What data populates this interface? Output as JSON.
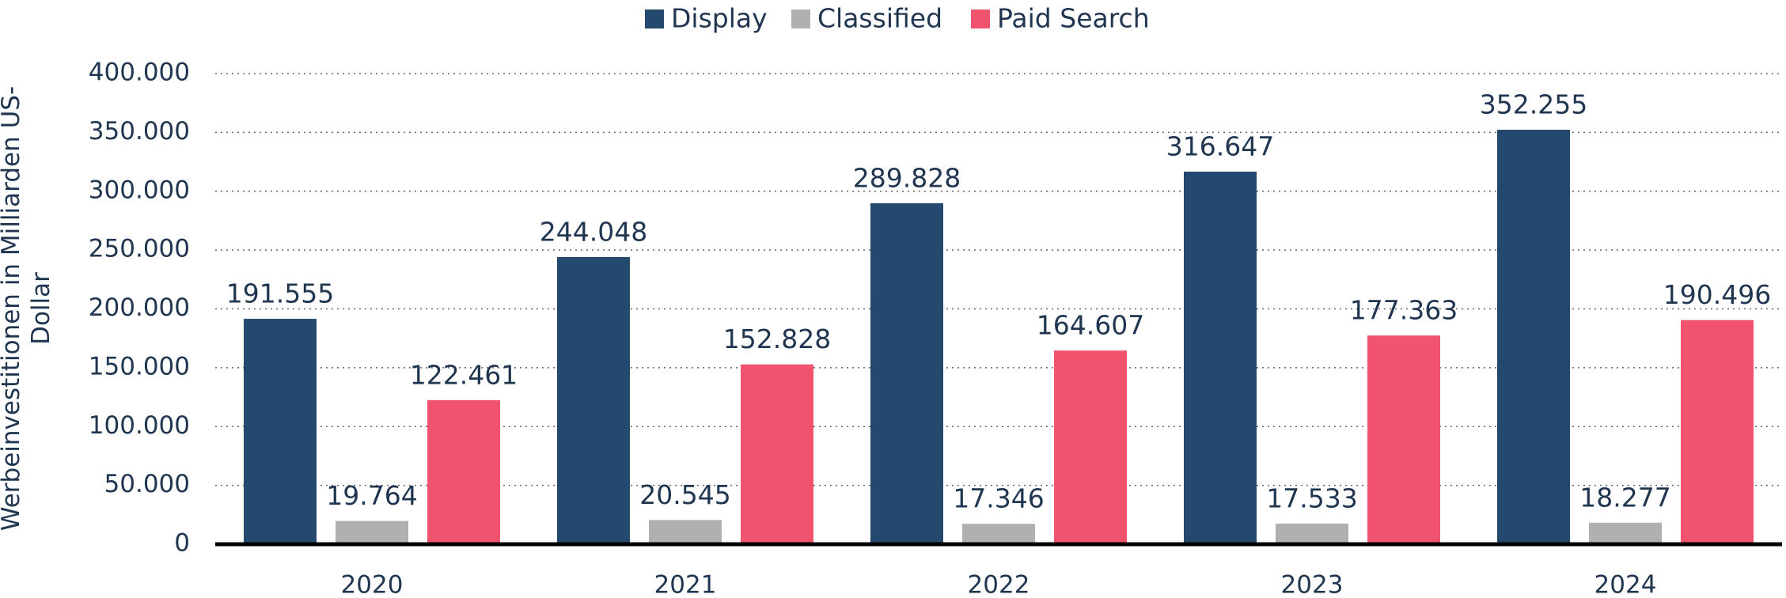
{
  "chart_data": {
    "type": "bar",
    "ylabel": "Werbeinvestitionen in Milliarden US-Dollar",
    "categories": [
      "2020",
      "2021",
      "2022",
      "2023",
      "2024"
    ],
    "series": [
      {
        "name": "Display",
        "color": "#234a6e",
        "values": [
          191555,
          244048,
          289828,
          316647,
          352255
        ],
        "value_labels": [
          "191.555",
          "244.048",
          "289.828",
          "316.647",
          "352.255"
        ]
      },
      {
        "name": "Classified",
        "color": "#b0b0b0",
        "values": [
          19764,
          20545,
          17346,
          17533,
          18277
        ],
        "value_labels": [
          "19.764",
          "20.545",
          "17.346",
          "17.533",
          "18.277"
        ]
      },
      {
        "name": "Paid Search",
        "color": "#f0536e",
        "values": [
          122461,
          152828,
          164607,
          177363,
          190496
        ],
        "value_labels": [
          "122.461",
          "152.828",
          "164.607",
          "177.363",
          "190.496"
        ]
      }
    ],
    "ylim": [
      0,
      400000
    ],
    "yticks": [
      0,
      {
        "value": 50000,
        "label": "50.000"
      },
      {
        "value": 100000,
        "label": "100.000"
      },
      {
        "value": 150000,
        "label": "150.000"
      },
      {
        "value": 200000,
        "label": "200.000"
      },
      {
        "value": 250000,
        "label": "250.000"
      },
      {
        "value": 300000,
        "label": "300.000"
      },
      {
        "value": 350000,
        "label": "350.000"
      },
      {
        "value": 400000,
        "label": "400.000"
      }
    ],
    "grid": true,
    "legend": "top"
  }
}
